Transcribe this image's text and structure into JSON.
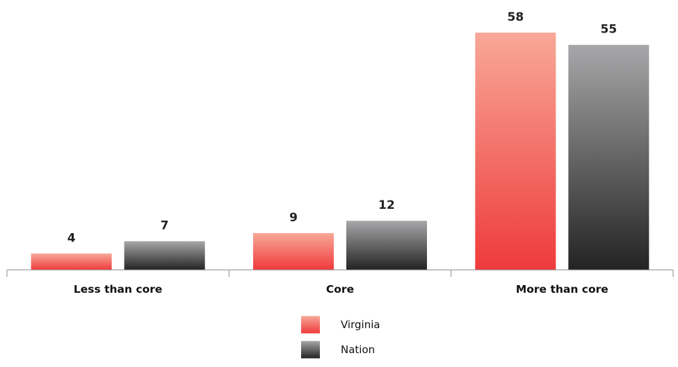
{
  "chart_data": {
    "type": "bar",
    "categories": [
      "Less than core",
      "Core",
      "More than core"
    ],
    "series": [
      {
        "name": "Virginia",
        "values": [
          4,
          9,
          58
        ],
        "color_top": "#f8a898",
        "color_bottom": "#ef3a3c"
      },
      {
        "name": "Nation",
        "values": [
          7,
          12,
          55
        ],
        "color_top": "#a7a7a9",
        "color_bottom": "#232323"
      }
    ],
    "title": "",
    "xlabel": "",
    "ylabel": "",
    "ylim": [
      0,
      58
    ],
    "grid": false,
    "legend_position": "bottom-center",
    "data_labels": true
  }
}
